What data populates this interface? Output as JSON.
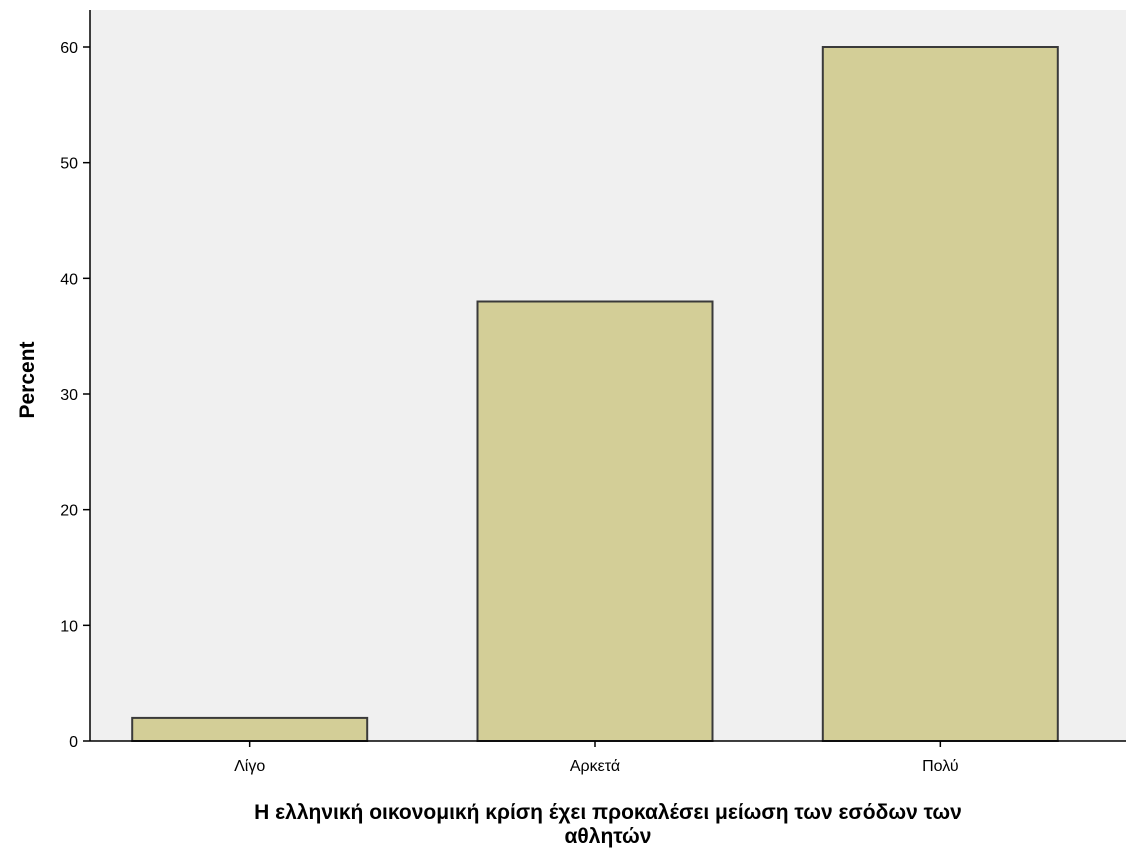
{
  "chart_data": {
    "type": "bar",
    "title": "",
    "xlabel_lines": [
      "Η ελληνική οικονομική κρίση έχει προκαλέσει μείωση των εσόδων των",
      "αθλητών"
    ],
    "ylabel": "Percent",
    "categories": [
      "Λίγο",
      "Αρκετά",
      "Πολύ"
    ],
    "values": [
      2,
      38,
      60
    ],
    "ylim": [
      0,
      60
    ],
    "yticks": [
      0,
      10,
      20,
      30,
      40,
      50,
      60
    ],
    "grid": false,
    "colors": {
      "plot_background": "#f0f0f0",
      "bar_fill": "#d3ce97",
      "bar_stroke": "#3a3a3a",
      "axis": "#000000"
    }
  }
}
